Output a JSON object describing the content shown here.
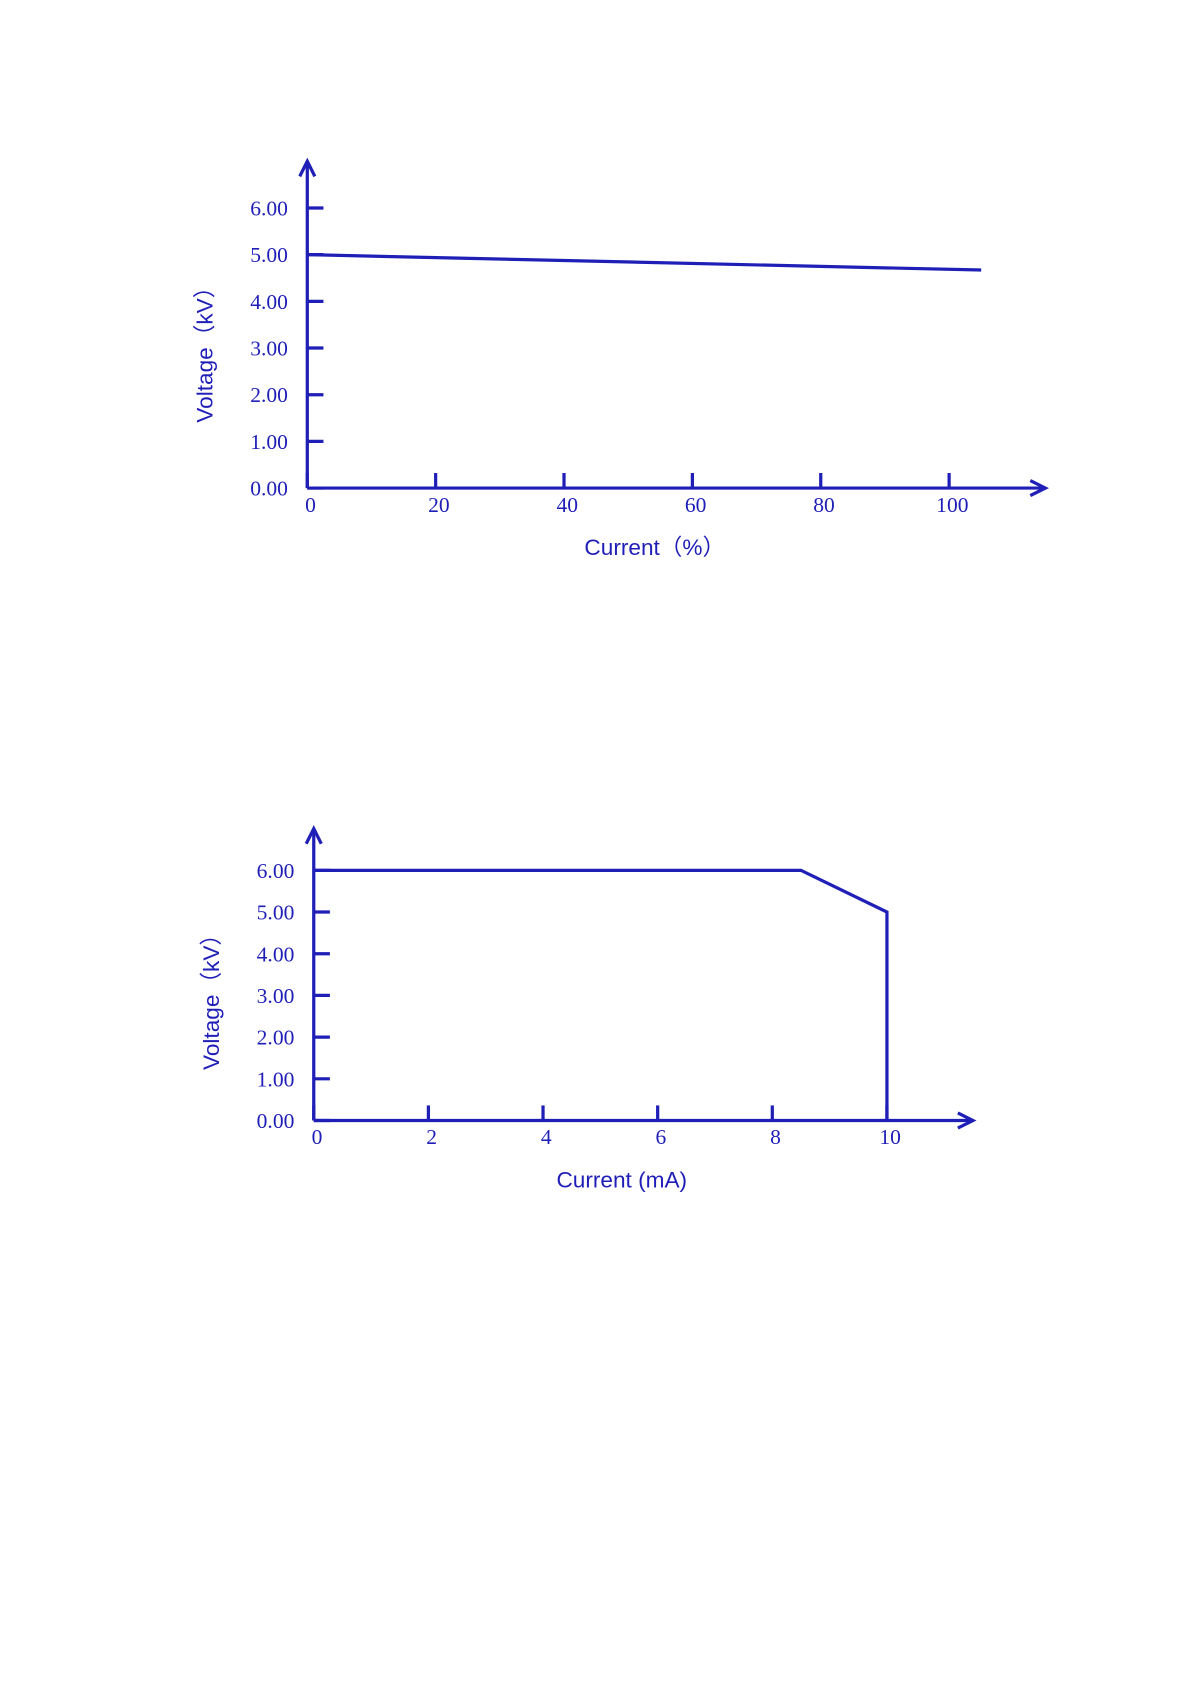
{
  "chart_data": [
    {
      "type": "line",
      "x_label": "Current（%）",
      "y_label": "Voltage（kV）",
      "x": [
        0,
        105
      ],
      "values": [
        5.0,
        4.67
      ],
      "color": "#1f1fb8",
      "xlim": [
        0,
        115
      ],
      "ylim": [
        0,
        7.0
      ],
      "xticks": [
        0,
        20,
        40,
        60,
        80,
        100
      ],
      "yticks": [
        {
          "value": 0,
          "label": "0.00"
        },
        {
          "value": 1,
          "label": "1.00"
        },
        {
          "value": 2,
          "label": "2.00"
        },
        {
          "value": 3,
          "label": "3.00"
        },
        {
          "value": 4,
          "label": "4.00"
        },
        {
          "value": 5,
          "label": "5.00"
        },
        {
          "value": 6,
          "label": "6.00"
        }
      ]
    },
    {
      "type": "line",
      "x_label": "Current (mA)",
      "y_label": "Voltage（kV）",
      "x": [
        0,
        8.5,
        10,
        10
      ],
      "values": [
        6.0,
        6.0,
        5.0,
        0
      ],
      "color": "#1f1fb8",
      "xlim": [
        0,
        11.5
      ],
      "ylim": [
        0,
        7.0
      ],
      "xticks": [
        0,
        2,
        4,
        6,
        8,
        10
      ],
      "yticks": [
        {
          "value": 0,
          "label": "0.00"
        },
        {
          "value": 1,
          "label": "1.00"
        },
        {
          "value": 2,
          "label": "2.00"
        },
        {
          "value": 3,
          "label": "3.00"
        },
        {
          "value": 4,
          "label": "4.00"
        },
        {
          "value": 5,
          "label": "5.00"
        },
        {
          "value": 6,
          "label": "6.00"
        }
      ]
    }
  ]
}
